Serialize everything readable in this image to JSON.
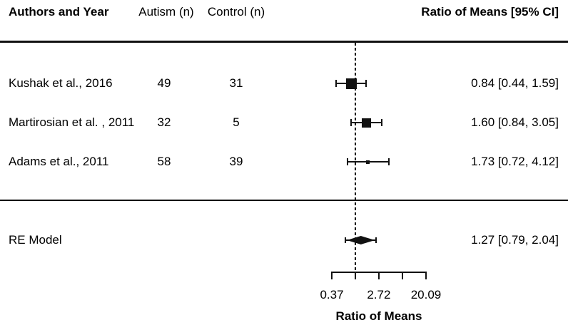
{
  "header": {
    "authors": "Authors and Year",
    "autism_n": "Autism (n)",
    "control_n": "Control (n)",
    "ratio_ci": "Ratio of Means [95% CI]"
  },
  "chart_data": {
    "type": "forest",
    "scale": "log",
    "title": "",
    "xlabel": "Ratio of Means",
    "xlim": [
      0.37,
      20.09
    ],
    "reference_line": 1,
    "axis": {
      "tick_values": [
        0.37,
        1,
        2.72,
        7.39,
        20.09
      ],
      "tick_labels": [
        "0.37",
        "",
        "2.72",
        "",
        "20.09"
      ]
    },
    "studies": [
      {
        "label": "Kushak et al., 2016",
        "autism_n": "49",
        "control_n": "31",
        "estimate": 0.84,
        "ci_low": 0.44,
        "ci_high": 1.59,
        "ci_text": "0.84 [0.44, 1.59]",
        "marker_px": 15
      },
      {
        "label": "Martirosian et al. , 2011",
        "autism_n": "32",
        "control_n": "5",
        "estimate": 1.6,
        "ci_low": 0.84,
        "ci_high": 3.05,
        "ci_text": "1.60 [0.84, 3.05]",
        "marker_px": 13
      },
      {
        "label": "Adams et al., 2011",
        "autism_n": "58",
        "control_n": "39",
        "estimate": 1.73,
        "ci_low": 0.72,
        "ci_high": 4.12,
        "ci_text": "1.73 [0.72, 4.12]",
        "marker_px": 5
      }
    ],
    "summary": {
      "label": "RE Model",
      "estimate": 1.27,
      "ci_low": 0.79,
      "ci_high": 2.04,
      "ci_text": "1.27 [0.79, 2.04]"
    }
  }
}
